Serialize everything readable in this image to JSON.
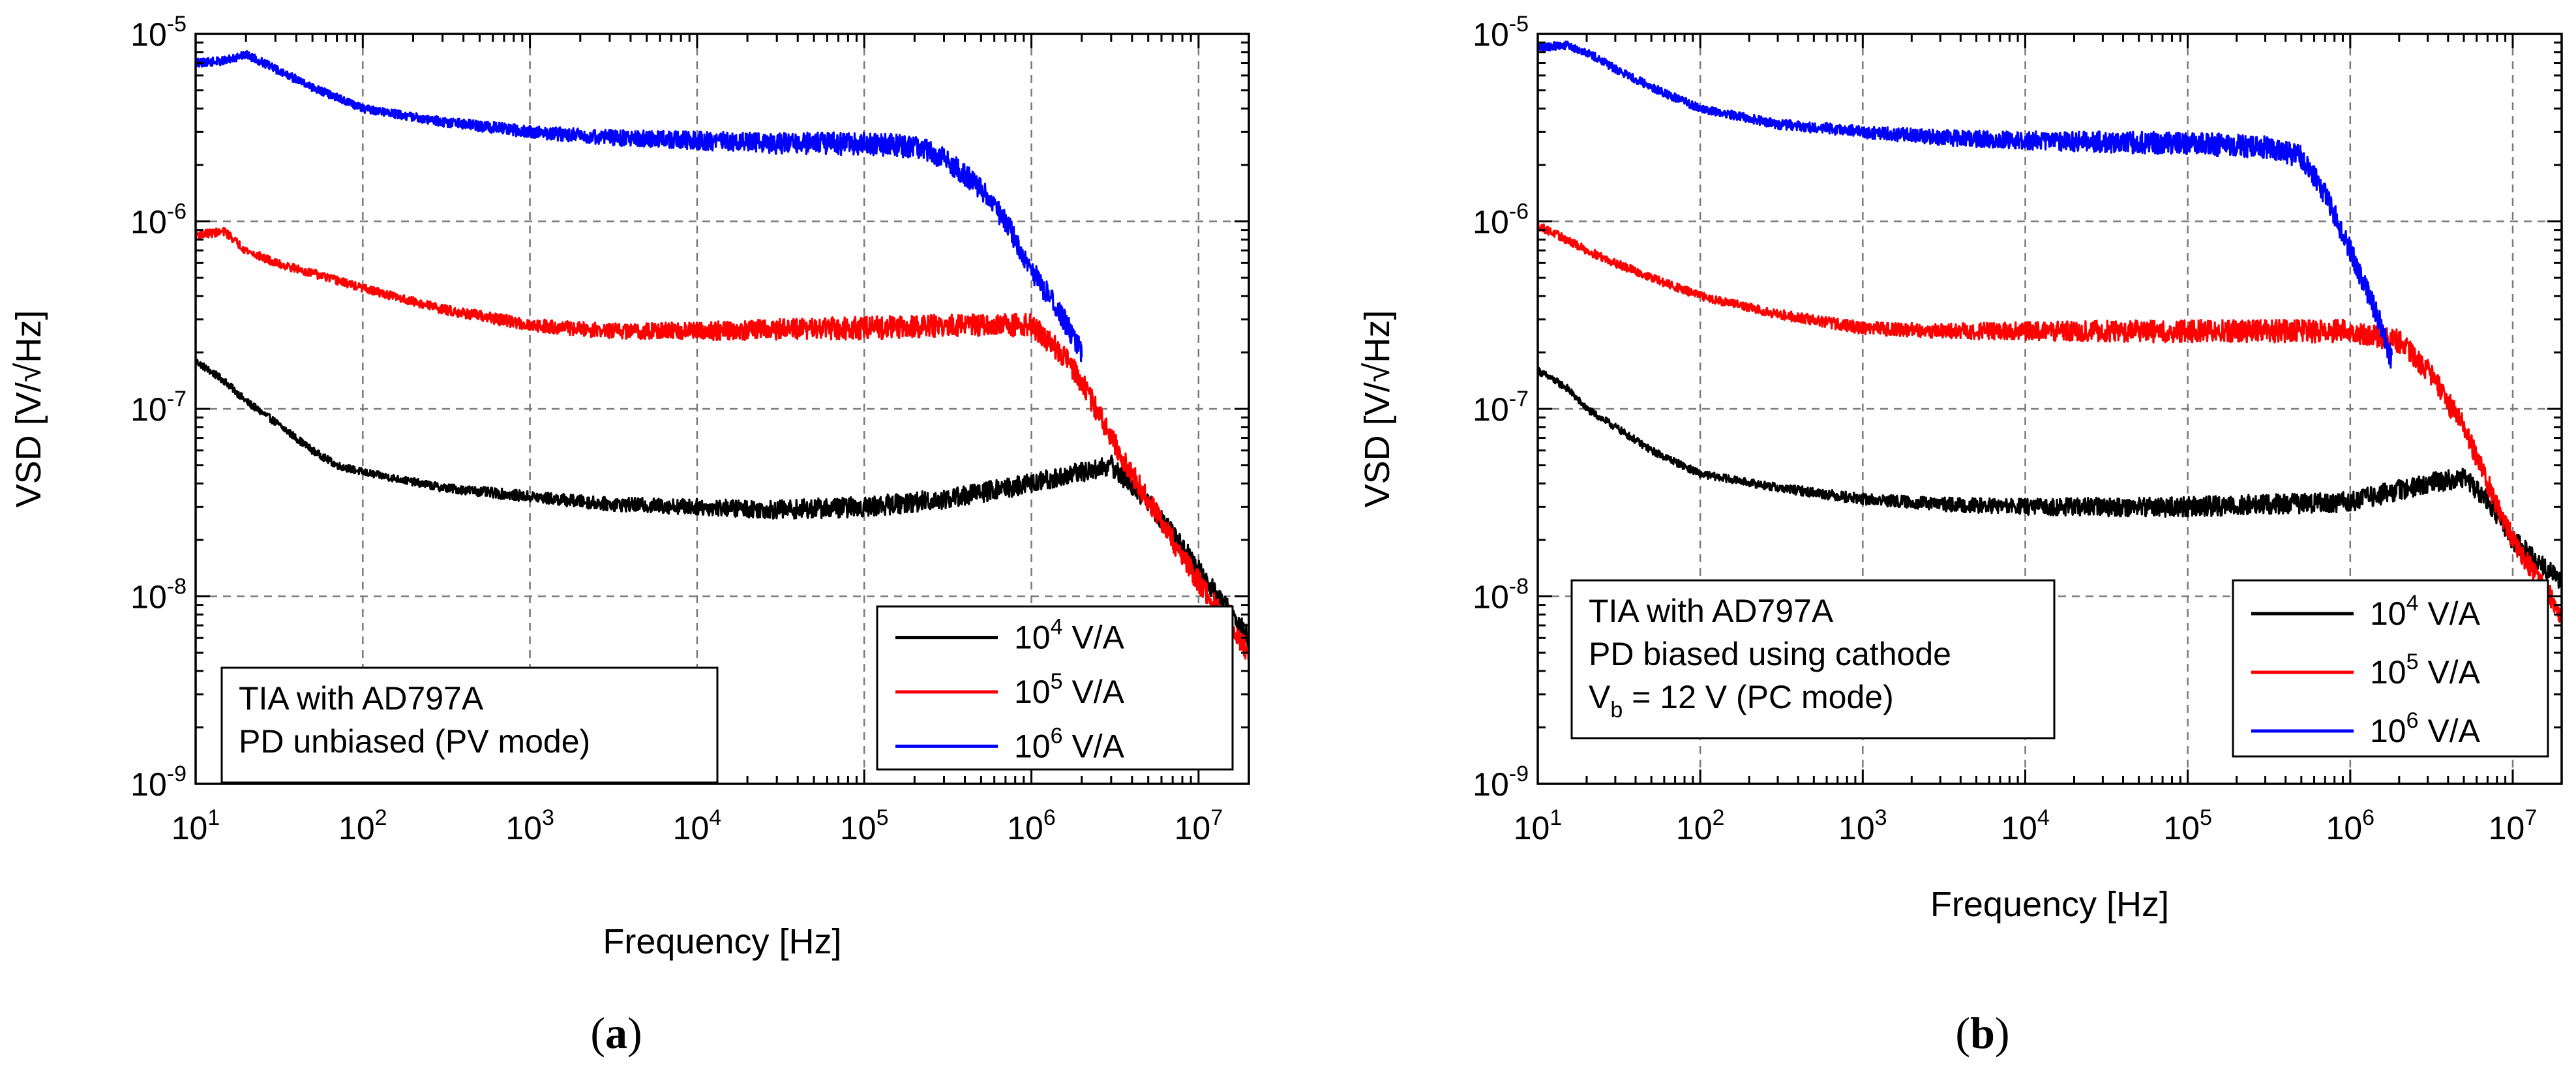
{
  "chart_data": [
    {
      "type": "line",
      "panel_label": "a",
      "xlabel": "Frequency [Hz]",
      "ylabel": "VSD [V/√Hz]",
      "xscale": "log",
      "yscale": "log",
      "xlim": [
        10,
        20000000
      ],
      "ylim": [
        1e-09,
        1e-05
      ],
      "x_ticks": [
        {
          "value": 10,
          "base": "10",
          "exp": "1"
        },
        {
          "value": 100,
          "base": "10",
          "exp": "2"
        },
        {
          "value": 1000,
          "base": "10",
          "exp": "3"
        },
        {
          "value": 10000,
          "base": "10",
          "exp": "4"
        },
        {
          "value": 100000,
          "base": "10",
          "exp": "5"
        },
        {
          "value": 1000000,
          "base": "10",
          "exp": "6"
        },
        {
          "value": 10000000,
          "base": "10",
          "exp": "7"
        }
      ],
      "y_ticks": [
        {
          "value": 1e-09,
          "base": "10",
          "exp": "-9"
        },
        {
          "value": 1e-08,
          "base": "10",
          "exp": "-8"
        },
        {
          "value": 1e-07,
          "base": "10",
          "exp": "-7"
        },
        {
          "value": 1e-06,
          "base": "10",
          "exp": "-6"
        },
        {
          "value": 1e-05,
          "base": "10",
          "exp": "-5"
        }
      ],
      "grid": true,
      "legend_position": "bottom-right",
      "annotation_position": "bottom-left",
      "annotation_lines": [
        {
          "text": "TIA with AD797A"
        },
        {
          "text": "PD unbiased (PV mode)"
        }
      ],
      "series": [
        {
          "name": "10^4 V/A",
          "legend_base": "10",
          "legend_exp": "4",
          "legend_unit": " V/A",
          "color": "#000000",
          "noise_decades": 0.04,
          "x": [
            10,
            15,
            20,
            30,
            50,
            70,
            100,
            300,
            1000,
            3000,
            10000,
            30000,
            100000,
            300000,
            1000000,
            2000000,
            3000000,
            5000000,
            10000000,
            20000000
          ],
          "y": [
            1.8e-07,
            1.4e-07,
            1.1e-07,
            8.5e-08,
            6e-08,
            5e-08,
            4.6e-08,
            3.8e-08,
            3.4e-08,
            3.1e-08,
            3e-08,
            2.9e-08,
            3e-08,
            3.3e-08,
            4e-08,
            4.6e-08,
            5e-08,
            3.2e-08,
            1.4e-08,
            6e-09
          ]
        },
        {
          "name": "10^5 V/A",
          "legend_base": "10",
          "legend_exp": "5",
          "legend_unit": " V/A",
          "color": "#ff0000",
          "noise_decades": 0.045,
          "x": [
            10,
            15,
            20,
            30,
            50,
            100,
            300,
            1000,
            3000,
            10000,
            100000,
            500000,
            1000000,
            1500000,
            2000000,
            3000000,
            5000000,
            10000000,
            20000000
          ],
          "y": [
            8.5e-07,
            8.8e-07,
            7e-07,
            6e-07,
            5.3e-07,
            4.4e-07,
            3.4e-07,
            2.8e-07,
            2.6e-07,
            2.6e-07,
            2.7e-07,
            2.8e-07,
            2.8e-07,
            2e-07,
            1.4e-07,
            7e-08,
            3.2e-08,
            1.2e-08,
            5e-09
          ]
        },
        {
          "name": "10^6 V/A",
          "legend_base": "10",
          "legend_exp": "6",
          "legend_unit": " V/A",
          "color": "#0000ff",
          "noise_decades": 0.045,
          "x": [
            10,
            15,
            20,
            30,
            50,
            100,
            300,
            1000,
            3000,
            10000,
            30000,
            100000,
            200000,
            300000,
            500000,
            700000,
            1000000,
            1500000,
            2000000
          ],
          "y": [
            7e-06,
            7.2e-06,
            7.8e-06,
            6.5e-06,
            5.2e-06,
            4e-06,
            3.4e-06,
            3e-06,
            2.8e-06,
            2.7e-06,
            2.6e-06,
            2.6e-06,
            2.5e-06,
            2.2e-06,
            1.5e-06,
            1e-06,
            5.5e-07,
            3.2e-07,
            2e-07
          ]
        }
      ]
    },
    {
      "type": "line",
      "panel_label": "b",
      "xlabel": "Frequency [Hz]",
      "ylabel": "VSD [V/√Hz]",
      "xscale": "log",
      "yscale": "log",
      "xlim": [
        10,
        20000000
      ],
      "ylim": [
        1e-09,
        1e-05
      ],
      "x_ticks": [
        {
          "value": 10,
          "base": "10",
          "exp": "1"
        },
        {
          "value": 100,
          "base": "10",
          "exp": "2"
        },
        {
          "value": 1000,
          "base": "10",
          "exp": "3"
        },
        {
          "value": 10000,
          "base": "10",
          "exp": "4"
        },
        {
          "value": 100000,
          "base": "10",
          "exp": "5"
        },
        {
          "value": 1000000,
          "base": "10",
          "exp": "6"
        },
        {
          "value": 10000000,
          "base": "10",
          "exp": "7"
        }
      ],
      "y_ticks": [
        {
          "value": 1e-09,
          "base": "10",
          "exp": "-9"
        },
        {
          "value": 1e-08,
          "base": "10",
          "exp": "-8"
        },
        {
          "value": 1e-07,
          "base": "10",
          "exp": "-7"
        },
        {
          "value": 1e-06,
          "base": "10",
          "exp": "-6"
        },
        {
          "value": 1e-05,
          "base": "10",
          "exp": "-5"
        }
      ],
      "grid": true,
      "legend_position": "bottom-right",
      "annotation_position": "bottom-left",
      "annotation_lines": [
        {
          "text": "TIA with AD797A"
        },
        {
          "text": "PD biased using cathode"
        },
        {
          "text": "V",
          "sub": "b",
          "rest": " = 12 V (PC mode)"
        }
      ],
      "series": [
        {
          "name": "10^4 V/A",
          "legend_base": "10",
          "legend_exp": "4",
          "legend_unit": " V/A",
          "color": "#000000",
          "noise_decades": 0.04,
          "x": [
            10,
            15,
            20,
            30,
            50,
            100,
            300,
            1000,
            3000,
            10000,
            100000,
            1000000,
            3000000,
            5000000,
            7000000,
            10000000,
            20000000
          ],
          "y": [
            1.6e-07,
            1.3e-07,
            1e-07,
            8e-08,
            6e-08,
            4.5e-08,
            3.8e-08,
            3.3e-08,
            3.1e-08,
            3e-08,
            3e-08,
            3.2e-08,
            4e-08,
            4.3e-08,
            3.3e-08,
            2e-08,
            1.2e-08
          ]
        },
        {
          "name": "10^5 V/A",
          "legend_base": "10",
          "legend_exp": "5",
          "legend_unit": " V/A",
          "color": "#ff0000",
          "noise_decades": 0.045,
          "x": [
            10,
            15,
            20,
            30,
            50,
            100,
            300,
            1000,
            3000,
            10000,
            100000,
            1000000,
            2000000,
            3000000,
            5000000,
            7000000,
            10000000,
            20000000
          ],
          "y": [
            9.5e-07,
            8e-07,
            7e-07,
            6e-07,
            5e-07,
            4e-07,
            3.2e-07,
            2.7e-07,
            2.6e-07,
            2.6e-07,
            2.6e-07,
            2.6e-07,
            2.3e-07,
            1.6e-07,
            8e-08,
            4e-08,
            2e-08,
            8e-09
          ]
        },
        {
          "name": "10^6 V/A",
          "legend_base": "10",
          "legend_exp": "6",
          "legend_unit": " V/A",
          "color": "#0000ff",
          "noise_decades": 0.045,
          "x": [
            10,
            15,
            20,
            30,
            50,
            100,
            300,
            1000,
            3000,
            10000,
            100000,
            300000,
            500000,
            700000,
            1000000,
            1500000,
            1800000
          ],
          "y": [
            8.5e-06,
            8.7e-06,
            8e-06,
            6.5e-06,
            5.2e-06,
            4e-06,
            3.3e-06,
            3e-06,
            2.8e-06,
            2.7e-06,
            2.6e-06,
            2.5e-06,
            2.2e-06,
            1.4e-06,
            7e-07,
            3e-07,
            1.8e-07
          ]
        }
      ]
    }
  ]
}
